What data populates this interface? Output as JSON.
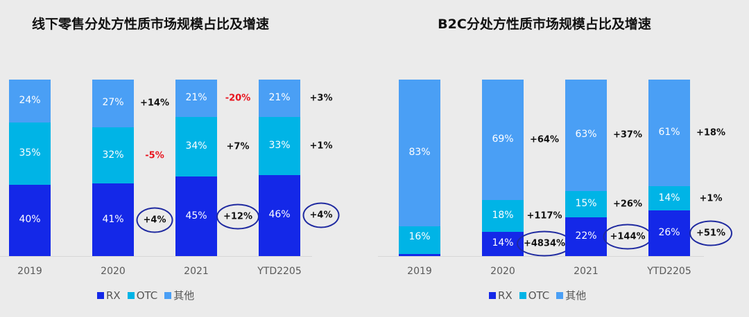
{
  "colors": {
    "RX": "#1428e8",
    "OTC": "#00b4e6",
    "其他": "#4a9ff5",
    "negative": "#e8141e",
    "circle": "#1f2aa0"
  },
  "chart_data": [
    {
      "type": "bar",
      "stacked": true,
      "title": "线下零售分处方性质市场规模占比及增速",
      "categories": [
        "2019",
        "2020",
        "2021",
        "YTD2205"
      ],
      "series": [
        {
          "name": "RX",
          "values": [
            40,
            41,
            45,
            46
          ],
          "labels": [
            "40%",
            "41%",
            "45%",
            "46%"
          ],
          "growth": [
            null,
            "+4%",
            "+12%",
            "+4%"
          ],
          "growth_circled": true
        },
        {
          "name": "OTC",
          "values": [
            35,
            32,
            34,
            33
          ],
          "labels": [
            "35%",
            "32%",
            "34%",
            "33%"
          ],
          "growth": [
            null,
            "-5%",
            "+7%",
            "+1%"
          ]
        },
        {
          "name": "其他",
          "values": [
            24,
            27,
            21,
            21
          ],
          "labels": [
            "24%",
            "27%",
            "21%",
            "21%"
          ],
          "growth": [
            null,
            "+14%",
            "-20%",
            "+3%"
          ]
        }
      ],
      "legend": "bottom",
      "grid": false
    },
    {
      "type": "bar",
      "stacked": true,
      "title": "B2C分处方性质市场规模占比及增速",
      "categories": [
        "2019",
        "2020",
        "2021",
        "YTD2205"
      ],
      "series": [
        {
          "name": "RX",
          "values": [
            1,
            14,
            22,
            26
          ],
          "labels": [
            "1%",
            "14%",
            "22%",
            "26%"
          ],
          "growth": [
            null,
            "+4834%",
            "+144%",
            "+51%"
          ],
          "growth_circled": true
        },
        {
          "name": "OTC",
          "values": [
            16,
            18,
            15,
            14
          ],
          "labels": [
            "16%",
            "18%",
            "15%",
            "14%"
          ],
          "growth": [
            null,
            "+117%",
            "+26%",
            "+1%"
          ]
        },
        {
          "name": "其他",
          "values": [
            83,
            69,
            63,
            61
          ],
          "labels": [
            "83%",
            "69%",
            "63%",
            "61%"
          ],
          "growth": [
            null,
            "+64%",
            "+37%",
            "+18%"
          ]
        }
      ],
      "legend": "bottom",
      "grid": false
    }
  ]
}
